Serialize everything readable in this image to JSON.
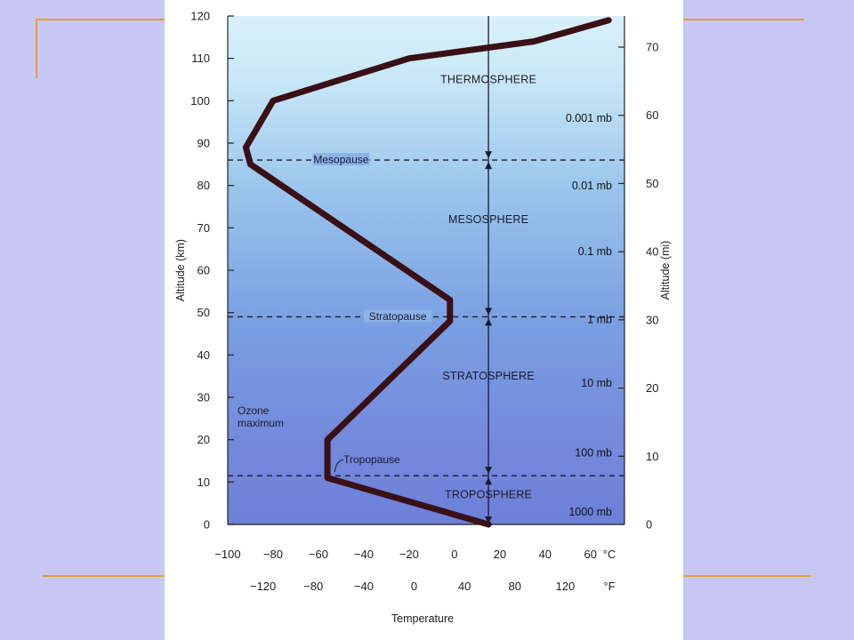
{
  "slide": {
    "accent_color": "#e0a030",
    "background_color": "#c8c8f5"
  },
  "chart_data": {
    "type": "line",
    "title": "",
    "xlabel": "Temperature",
    "ylabel": "Altitude (km)",
    "y2label": "Altitude (mi)",
    "xlim": [
      -100,
      75
    ],
    "ylim": [
      0,
      120
    ],
    "x_ticks_c": [
      "−100",
      "−80",
      "−60",
      "−40",
      "−20",
      "0",
      "20",
      "40",
      "60"
    ],
    "x_tick_values_c": [
      -100,
      -80,
      -60,
      -40,
      -20,
      0,
      20,
      40,
      60
    ],
    "x_unit_c": "°C",
    "x_ticks_f": [
      "−120",
      "−80",
      "−40",
      "0",
      "40",
      "80",
      "120"
    ],
    "x_tick_values_f": [
      -120,
      -80,
      -40,
      0,
      40,
      80,
      120
    ],
    "x_unit_f": "°F",
    "y_ticks_km": [
      "0",
      "10",
      "20",
      "30",
      "40",
      "50",
      "60",
      "70",
      "80",
      "90",
      "100",
      "110",
      "120"
    ],
    "y_tick_values_km": [
      0,
      10,
      20,
      30,
      40,
      50,
      60,
      70,
      80,
      90,
      100,
      110,
      120
    ],
    "y_ticks_mi": [
      "0",
      "10",
      "20",
      "30",
      "40",
      "50",
      "60",
      "70"
    ],
    "y_tick_values_mi": [
      0,
      10,
      20,
      30,
      40,
      50,
      60,
      70
    ],
    "series": [
      {
        "name": "",
        "x": [
          15,
          -56,
          -56,
          -2,
          -2,
          -90,
          -92,
          -80,
          -20,
          35,
          68
        ],
        "y": [
          0,
          11,
          20,
          48,
          53,
          85,
          89,
          100,
          110,
          114,
          119
        ]
      }
    ],
    "boundaries": [
      {
        "label": "Tropopause",
        "altitude": 11.5
      },
      {
        "label": "Stratopause",
        "altitude": 49
      },
      {
        "label": "Mesopause",
        "altitude": 86
      }
    ],
    "layers": [
      {
        "label": "TROPOSPHERE",
        "altitude": 7
      },
      {
        "label": "STRATOSPHERE",
        "altitude": 35
      },
      {
        "label": "MESOSPHERE",
        "altitude": 72
      },
      {
        "label": "THERMOSPHERE",
        "altitude": 105
      }
    ],
    "pressure_labels": [
      {
        "label": "1000 mb",
        "altitude": 3
      },
      {
        "label": "100 mb",
        "altitude": 17
      },
      {
        "label": "10 mb",
        "altitude": 33.5
      },
      {
        "label": "1 mb",
        "altitude": 48.5
      },
      {
        "label": "0.1 mb",
        "altitude": 64.5
      },
      {
        "label": "0.01 mb",
        "altitude": 80
      },
      {
        "label": "0.001 mb",
        "altitude": 96
      }
    ],
    "annotations": [
      {
        "label_lines": [
          "Ozone",
          "maximum"
        ],
        "altitude": 26
      }
    ],
    "grid": false
  }
}
